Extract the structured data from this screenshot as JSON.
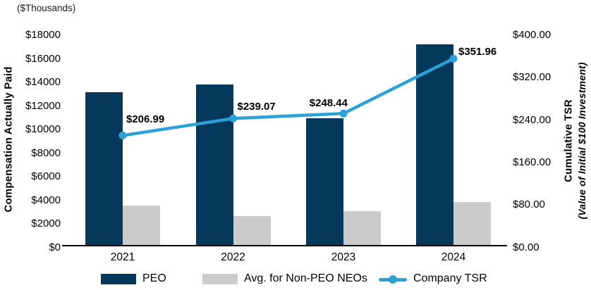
{
  "title_note": "($Thousands)",
  "left_axis": {
    "title": "Compensation Actually Paid",
    "ticks": [
      "$0",
      "$2000",
      "$4000",
      "$6000",
      "$8000",
      "$10000",
      "$12000",
      "$14000",
      "$16000",
      "$18000"
    ],
    "max": 18000
  },
  "right_axis": {
    "title_line1": "Cumulative TSR",
    "title_line2": "(Value of Initial $100 Investment)",
    "ticks": [
      "$0.00",
      "$80.00",
      "$160.00",
      "$240.00",
      "$320.00",
      "$400.00"
    ],
    "max": 400
  },
  "chart_data": {
    "type": "combo-bar-line",
    "title": "($Thousands)",
    "categories": [
      "2021",
      "2022",
      "2023",
      "2024"
    ],
    "left_ylim": [
      0,
      18000
    ],
    "right_ylim": [
      0,
      400
    ],
    "grid": false,
    "legend_position": "bottom",
    "series": [
      {
        "name": "PEO",
        "type": "bar",
        "axis": "left",
        "color": "#04395C",
        "values": [
          13000,
          13650,
          10800,
          17050
        ]
      },
      {
        "name": "Avg. for Non-PEO NEOs",
        "type": "bar",
        "axis": "left",
        "color": "#CBCBCB",
        "values": [
          3400,
          2450,
          2900,
          3700
        ]
      },
      {
        "name": "Company TSR",
        "type": "line",
        "axis": "right",
        "color": "#2AA2D8",
        "values": [
          206.99,
          239.07,
          248.44,
          351.96
        ],
        "point_labels": [
          "$206.99",
          "$239.07",
          "$248.44",
          "$351.96"
        ]
      }
    ]
  },
  "legend": {
    "items": [
      {
        "label": "PEO",
        "swatch": "bar",
        "color": "#04395C"
      },
      {
        "label": "Avg. for Non-PEO NEOs",
        "swatch": "bar",
        "color": "#CBCBCB"
      },
      {
        "label": "Company TSR",
        "swatch": "line",
        "color": "#2AA2D8"
      }
    ]
  },
  "colors": {
    "peo": "#04395C",
    "non_peo": "#CBCBCB",
    "tsr": "#2AA2D8",
    "axis": "#000000"
  }
}
